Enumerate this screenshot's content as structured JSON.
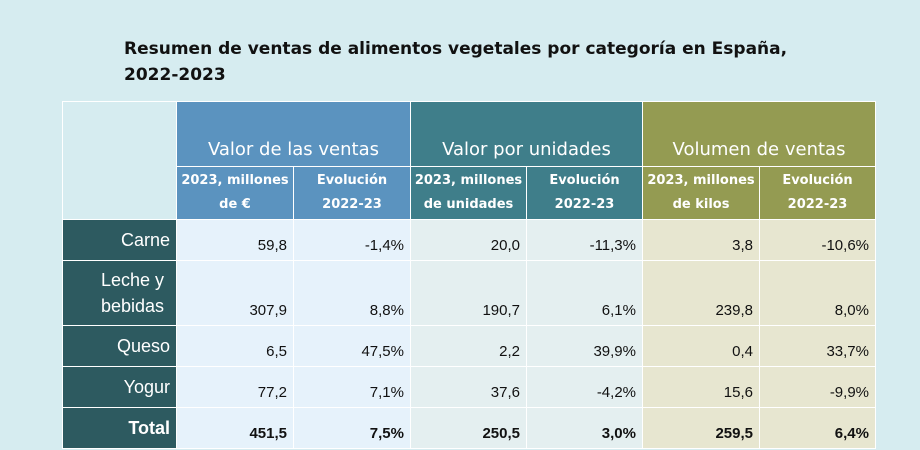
{
  "title": "Resumen de ventas de alimentos vegetales por categoría en España, 2022-2023",
  "groups": [
    "Valor de las ventas",
    "Valor por unidades",
    "Volumen de ventas"
  ],
  "subheaders": [
    "2023, millones de €",
    "Evolución 2022-23",
    "2023, millones de unidades",
    "Evolución 2022-23",
    "2023, millones de kilos",
    "Evolución 2022-23"
  ],
  "rows": [
    {
      "label": "Carne",
      "values": [
        "59,8",
        "-1,4%",
        "20,0",
        "-11,3%",
        "3,8",
        "-10,6%"
      ]
    },
    {
      "label": "Leche y bebidas",
      "values": [
        "307,9",
        "8,8%",
        "190,7",
        "6,1%",
        "239,8",
        "8,0%"
      ]
    },
    {
      "label": "Queso",
      "values": [
        "6,5",
        "47,5%",
        "2,2",
        "39,9%",
        "0,4",
        "33,7%"
      ]
    },
    {
      "label": "Yogur",
      "values": [
        "77,2",
        "7,1%",
        "37,6",
        "-4,2%",
        "15,6",
        "-9,9%"
      ]
    },
    {
      "label": "Total",
      "values": [
        "451,5",
        "7,5%",
        "250,5",
        "3,0%",
        "259,5",
        "6,4%"
      ]
    }
  ],
  "colors": {
    "background": "#d6ecf0",
    "group_sales_value": "#5b93bf",
    "group_unit_value": "#3f7e8a",
    "group_volume": "#949b52",
    "row_label": "#2d5a60"
  }
}
